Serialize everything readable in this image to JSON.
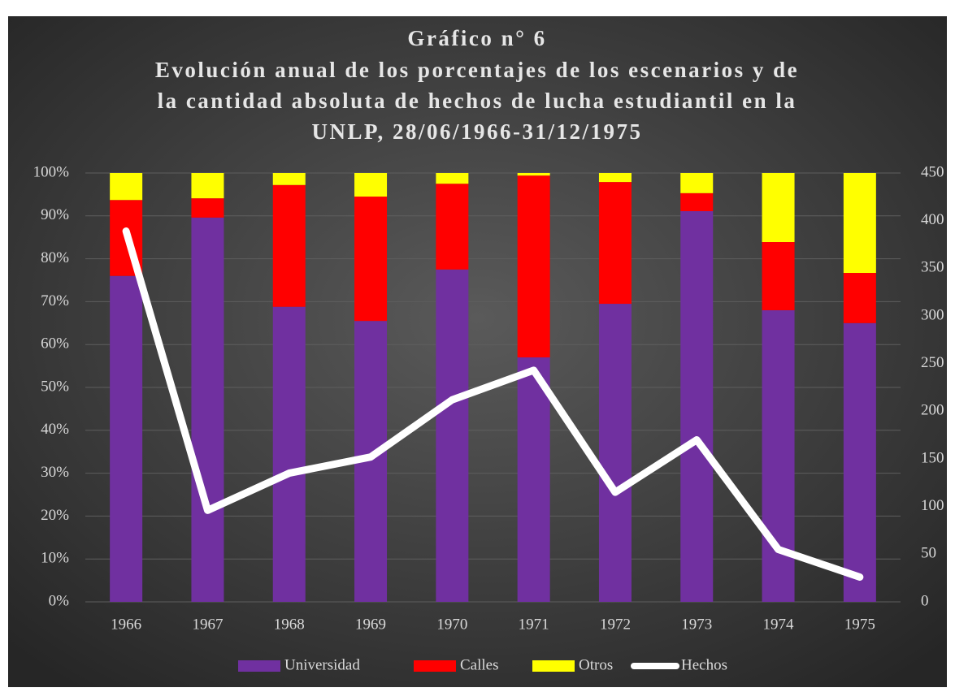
{
  "chart_data": {
    "type": "bar",
    "stacked": true,
    "title": [
      "Gráfico n° 6",
      "Evolución anual de los porcentajes de los escenarios y de",
      "la cantidad absoluta de hechos de lucha estudiantil en la",
      "UNLP, 28/06/1966-31/12/1975"
    ],
    "categories": [
      "1966",
      "1967",
      "1968",
      "1969",
      "1970",
      "1971",
      "1972",
      "1973",
      "1974",
      "1975"
    ],
    "series": [
      {
        "name": "Universidad",
        "color": "#7030a0",
        "values": [
          76,
          89.6,
          68.8,
          65.5,
          77.5,
          57,
          69.5,
          91.1,
          68,
          65
        ]
      },
      {
        "name": "Calles",
        "color": "#ff0000",
        "values": [
          17.7,
          4.5,
          28.4,
          29,
          20,
          42.4,
          28.4,
          4.2,
          15.9,
          11.7
        ]
      },
      {
        "name": "Otros",
        "color": "#ffff00",
        "values": [
          6.3,
          5.9,
          2.8,
          5.5,
          2.5,
          0.6,
          2.1,
          4.7,
          16.1,
          23.3
        ]
      },
      {
        "name": "Hechos",
        "color": "#ffffff",
        "type": "line",
        "axis": "y2",
        "values": [
          389,
          96,
          135,
          152,
          212,
          243,
          115,
          170,
          55,
          26
        ]
      }
    ],
    "ylim": [
      0,
      100
    ],
    "yticks": [
      {
        "value": 0,
        "label": "0%"
      },
      {
        "value": 10,
        "label": "10%"
      },
      {
        "value": 20,
        "label": "20%"
      },
      {
        "value": 30,
        "label": "30%"
      },
      {
        "value": 40,
        "label": "40%"
      },
      {
        "value": 50,
        "label": "50%"
      },
      {
        "value": 60,
        "label": "60%"
      },
      {
        "value": 70,
        "label": "70%"
      },
      {
        "value": 80,
        "label": "80%"
      },
      {
        "value": 90,
        "label": "90%"
      },
      {
        "value": 100,
        "label": "100%"
      }
    ],
    "y2lim": [
      0,
      450
    ],
    "y2ticks": [
      0,
      50,
      100,
      150,
      200,
      250,
      300,
      350,
      400,
      450
    ],
    "grid": true,
    "legend": "bottom"
  }
}
